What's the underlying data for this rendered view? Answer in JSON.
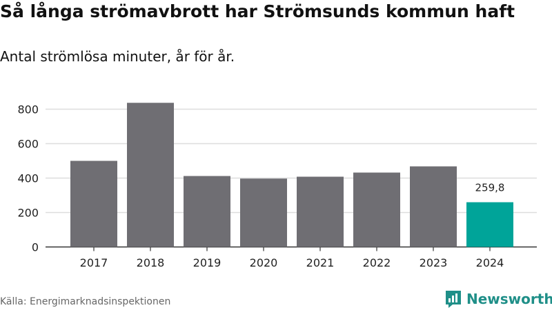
{
  "title": "Så långa strömavbrott har Strömsunds kommun haft",
  "subtitle": "Antal strömlösa minuter, år för år.",
  "source": "Källa: Energimarknadsinspektionen",
  "brand": {
    "name": "Newsworthy",
    "icon": "newsworthy-logo-icon",
    "color": "#1f8f88"
  },
  "colors": {
    "bar": "#6f6e73",
    "highlight": "#00a499",
    "grid": "#dddddd",
    "axis": "#333333"
  },
  "chart_data": {
    "type": "bar",
    "categories": [
      "2017",
      "2018",
      "2019",
      "2020",
      "2021",
      "2022",
      "2023",
      "2024"
    ],
    "values": [
      500,
      837,
      412,
      397,
      408,
      432,
      468,
      259.8
    ],
    "highlight_index": 7,
    "data_labels": [
      {
        "index": 7,
        "text": "259,8"
      }
    ],
    "yticks": [
      0,
      200,
      400,
      600,
      800
    ],
    "ylim": [
      0,
      860
    ],
    "grid": true,
    "xlabel": "",
    "ylabel": ""
  }
}
